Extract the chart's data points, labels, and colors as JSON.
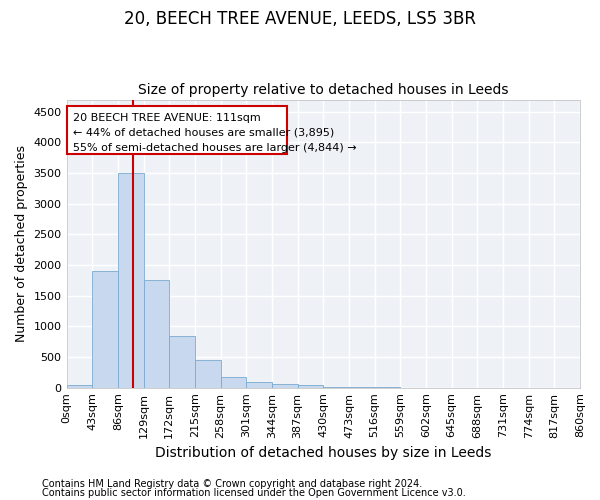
{
  "title": "20, BEECH TREE AVENUE, LEEDS, LS5 3BR",
  "subtitle": "Size of property relative to detached houses in Leeds",
  "xlabel": "Distribution of detached houses by size in Leeds",
  "ylabel": "Number of detached properties",
  "footer1": "Contains HM Land Registry data © Crown copyright and database right 2024.",
  "footer2": "Contains public sector information licensed under the Open Government Licence v3.0.",
  "bar_values": [
    50,
    1900,
    3500,
    1750,
    850,
    450,
    175,
    90,
    60,
    40,
    15,
    5,
    3,
    2,
    1,
    0,
    0,
    0,
    0,
    0
  ],
  "bin_edges": [
    0,
    43,
    86,
    129,
    172,
    215,
    258,
    301,
    344,
    387,
    430,
    473,
    516,
    559,
    602,
    645,
    688,
    731,
    774,
    817,
    860
  ],
  "x_tick_labels": [
    "0sqm",
    "43sqm",
    "86sqm",
    "129sqm",
    "172sqm",
    "215sqm",
    "258sqm",
    "301sqm",
    "344sqm",
    "387sqm",
    "430sqm",
    "473sqm",
    "516sqm",
    "559sqm",
    "602sqm",
    "645sqm",
    "688sqm",
    "731sqm",
    "774sqm",
    "817sqm",
    "860sqm"
  ],
  "ylim": [
    0,
    4700
  ],
  "yticks": [
    0,
    500,
    1000,
    1500,
    2000,
    2500,
    3000,
    3500,
    4000,
    4500
  ],
  "bar_color": "#c8d8ee",
  "bar_edge_color": "#7aaad0",
  "property_size": 111,
  "red_line_color": "#cc0000",
  "annotation_line1": "20 BEECH TREE AVENUE: 111sqm",
  "annotation_line2": "← 44% of detached houses are smaller (3,895)",
  "annotation_line3": "55% of semi-detached houses are larger (4,844) →",
  "annotation_box_color": "#cc0000",
  "bg_color": "#eef2f7",
  "grid_color": "#ffffff",
  "title_fontsize": 12,
  "subtitle_fontsize": 10,
  "tick_fontsize": 8,
  "ylabel_fontsize": 9,
  "xlabel_fontsize": 10,
  "footer_fontsize": 7
}
